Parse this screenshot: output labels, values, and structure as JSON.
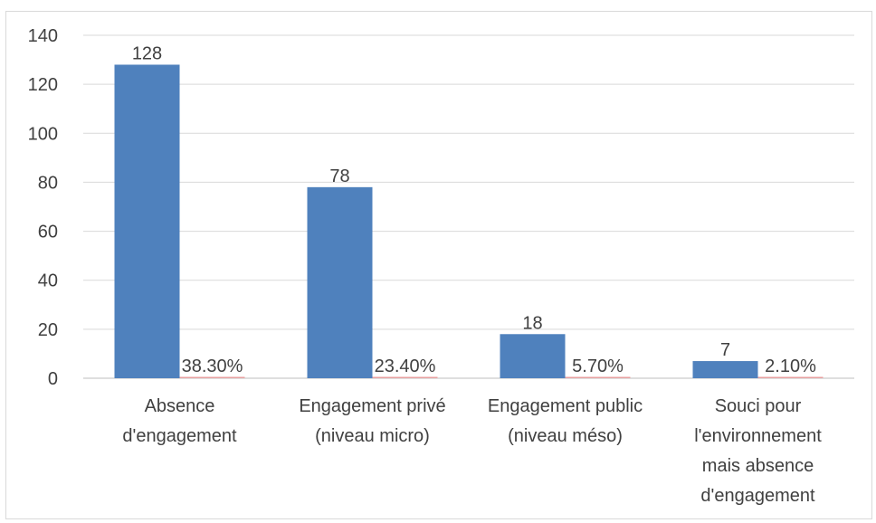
{
  "chart_data": {
    "type": "bar",
    "categories": [
      [
        "Absence",
        "d'engagement"
      ],
      [
        "Engagement privé",
        "(niveau micro)"
      ],
      [
        "Engagement public",
        "(niveau méso)"
      ],
      [
        "Souci pour",
        "l'environnement",
        "mais absence",
        "d'engagement"
      ]
    ],
    "series": [
      {
        "values": [
          128,
          78,
          18,
          7
        ],
        "labels": [
          "128",
          "78",
          "18",
          "7"
        ],
        "color": "#4f81bd"
      },
      {
        "values": [
          0.383,
          0.234,
          0.057,
          0.021
        ],
        "labels": [
          "38.30%",
          "23.40%",
          "5.70%",
          "2.10%"
        ],
        "color": "#e8a0a0"
      }
    ],
    "ylim": [
      0,
      140
    ],
    "yticks": [
      0,
      20,
      40,
      60,
      80,
      100,
      120,
      140
    ],
    "grid": true,
    "legend": "none",
    "title": "",
    "xlabel": "",
    "ylabel": ""
  }
}
